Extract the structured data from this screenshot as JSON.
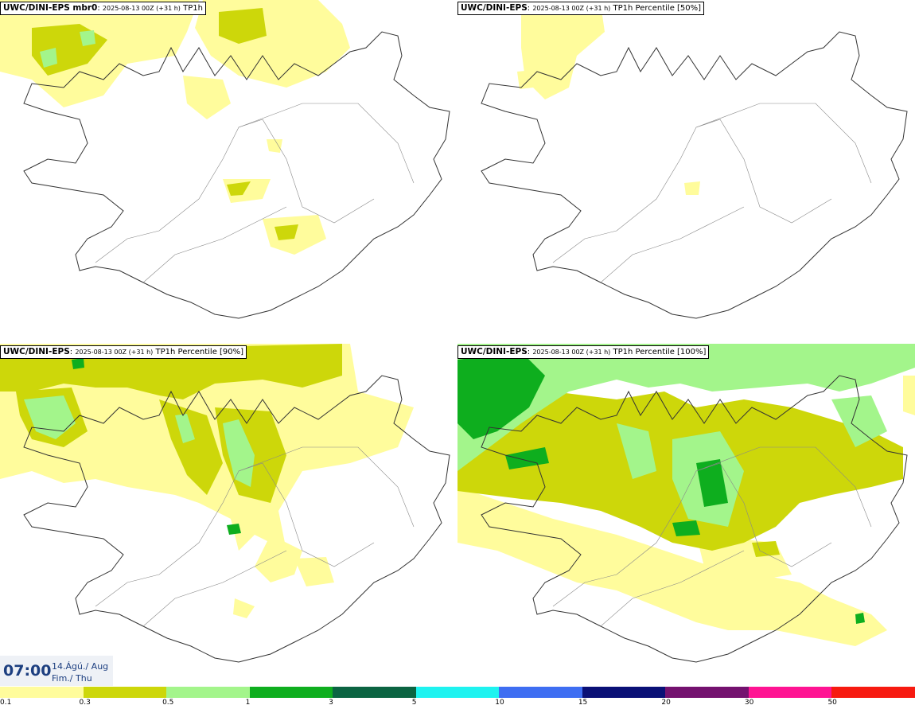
{
  "panels": [
    {
      "model": "UWC/DINI-EPS mbr0",
      "run": "2025-08-13 00Z (+31 h)",
      "field": "TP1h",
      "intensity": "low"
    },
    {
      "model": "UWC/DINI-EPS",
      "run": "2025-08-13 00Z (+31 h)",
      "field": "TP1h Percentile [50%]",
      "intensity": "verylow"
    },
    {
      "model": "UWC/DINI-EPS",
      "run": "2025-08-13 00Z (+31 h)",
      "field": "TP1h Percentile [90%]",
      "intensity": "medium"
    },
    {
      "model": "UWC/DINI-EPS",
      "run": "2025-08-13 00Z (+31 h)",
      "field": "TP1h Percentile [100%]",
      "intensity": "high"
    }
  ],
  "valid_time": {
    "time": "07:00",
    "date_line1": "14.Ágú./ Aug",
    "date_line2": "Fim./ Thu"
  },
  "legend": {
    "colors": [
      "#fffc9c",
      "#cdd70a",
      "#a3f58b",
      "#0eae1e",
      "#0b6442",
      "#1ef3f0",
      "#3e6ef2",
      "#0a1076",
      "#74126f",
      "#ff1493",
      "#f71a10"
    ],
    "labels": [
      "0.1",
      "0.3",
      "0.5",
      "1",
      "3",
      "5",
      "10",
      "15",
      "20",
      "30",
      "50"
    ]
  },
  "map_colors": {
    "light_yellow": "#fffc9c",
    "olive": "#cdd70a",
    "light_green": "#a3f58b",
    "green": "#0eae1e"
  }
}
